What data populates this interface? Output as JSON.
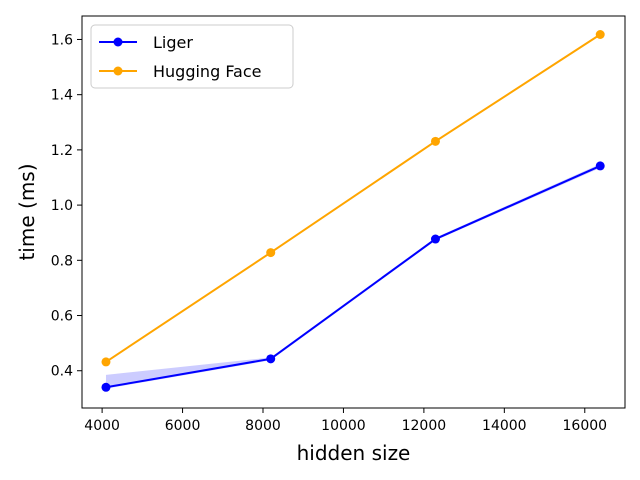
{
  "chart_data": {
    "type": "line",
    "title": "",
    "xlabel": "hidden size",
    "ylabel": "time (ms)",
    "xlim": [
      3500,
      17000
    ],
    "ylim": [
      0.265,
      1.685
    ],
    "xticks": [
      4000,
      6000,
      8000,
      10000,
      12000,
      14000,
      16000
    ],
    "xtick_labels": [
      "4000",
      "6000",
      "8000",
      "10000",
      "12000",
      "14000",
      "16000"
    ],
    "yticks": [
      0.4,
      0.6,
      0.8,
      1.0,
      1.2,
      1.4,
      1.6
    ],
    "ytick_labels": [
      "0.4",
      "0.6",
      "0.8",
      "1.0",
      "1.2",
      "1.4",
      "1.6"
    ],
    "grid": false,
    "legend": "top-left",
    "x": [
      4096,
      8192,
      12288,
      16384
    ],
    "series": [
      {
        "name": "Liger",
        "color": "#0000ff",
        "values": [
          0.34,
          0.443,
          0.877,
          1.142
        ],
        "band_low": [
          0.335,
          0.438,
          0.872,
          1.135
        ],
        "band_high": [
          0.385,
          0.448,
          0.882,
          1.149
        ]
      },
      {
        "name": "Hugging Face",
        "color": "#ffa500",
        "values": [
          0.432,
          0.828,
          1.231,
          1.618
        ]
      }
    ]
  }
}
